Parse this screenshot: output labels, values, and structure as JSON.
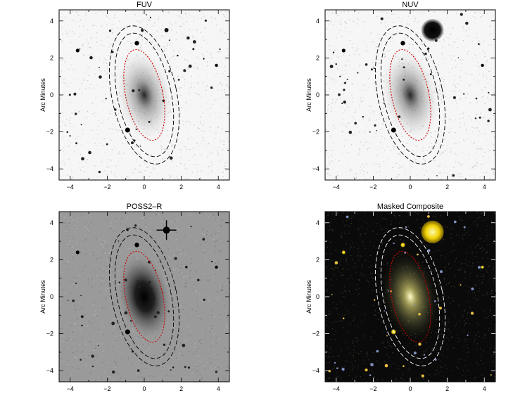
{
  "panels": [
    {
      "id": "fuv",
      "title": "FUV",
      "ylabel": "Arc Minutes",
      "style": "light",
      "ellipse_colors": {
        "outer": "#000000",
        "inner": "#cc0000"
      }
    },
    {
      "id": "nuv",
      "title": "NUV",
      "ylabel": "Arc Minutes",
      "style": "light",
      "ellipse_colors": {
        "outer": "#000000",
        "inner": "#cc0000"
      }
    },
    {
      "id": "poss2r",
      "title": "POSS2–R",
      "ylabel": "Arc Minutes",
      "style": "gray",
      "ellipse_colors": {
        "outer": "#000000",
        "inner": "#cc0000"
      }
    },
    {
      "id": "composite",
      "title": "Masked Composite",
      "ylabel": "Arc Minutes",
      "style": "dark",
      "ellipse_colors": {
        "outer": "#ffffff",
        "inner": "#cc0000"
      }
    }
  ],
  "axis": {
    "x_ticks": [
      "−4",
      "−2",
      "0",
      "2",
      "4"
    ],
    "y_ticks": [
      "4",
      "2",
      "0",
      "−2",
      "−4"
    ],
    "range": [
      -4.6,
      4.6
    ]
  }
}
